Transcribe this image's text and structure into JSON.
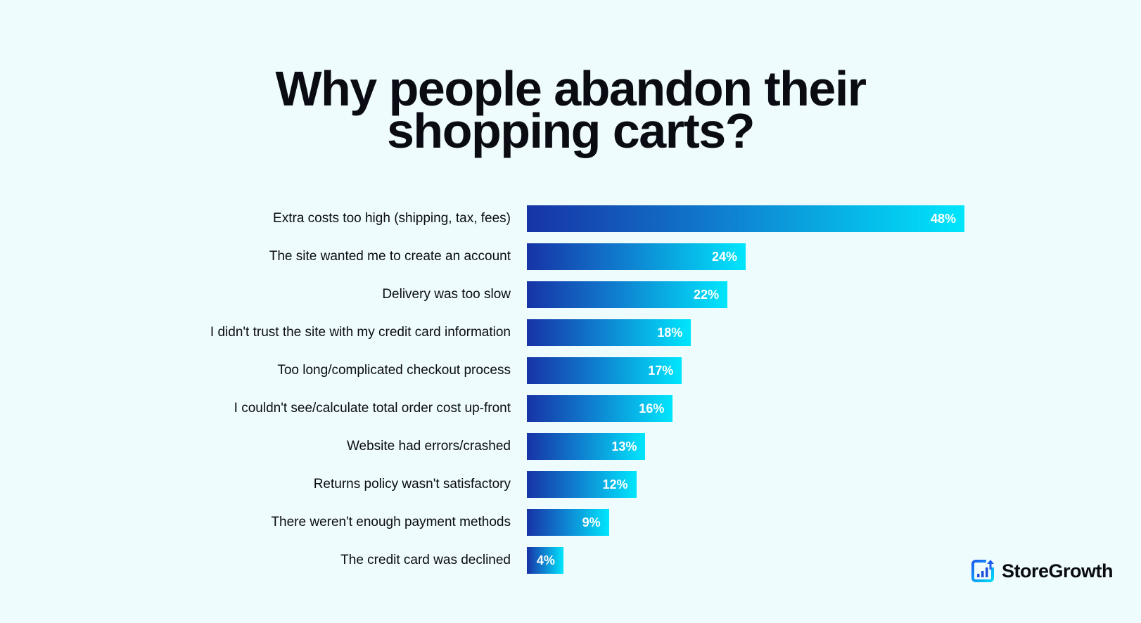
{
  "chart_data": {
    "type": "bar",
    "orientation": "horizontal",
    "title": "Why people abandon their shopping carts?",
    "title_lines": [
      "Why people abandon their",
      "shopping carts?"
    ],
    "categories": [
      "Extra costs too high (shipping, tax, fees)",
      "The site wanted me to create an account",
      "Delivery was too slow",
      "I didn't trust the site with my credit card information",
      "Too long/complicated checkout process",
      "I couldn't see/calculate total order cost up-front",
      "Website had errors/crashed",
      "Returns policy wasn't satisfactory",
      "There weren't enough payment methods",
      "The credit card was declined"
    ],
    "values": [
      48,
      24,
      22,
      18,
      17,
      16,
      13,
      12,
      9,
      4
    ],
    "value_labels": [
      "48%",
      "24%",
      "22%",
      "18%",
      "17%",
      "16%",
      "13%",
      "12%",
      "9%",
      "4%"
    ],
    "xlabel": "",
    "ylabel": "",
    "xlim": [
      0,
      48
    ],
    "grid": false,
    "colors": {
      "gradient_start": "#1733a6",
      "gradient_end": "#00e6fc"
    }
  },
  "brand": {
    "name": "StoreGrowth",
    "icon": "bar-chart-growth-icon"
  }
}
